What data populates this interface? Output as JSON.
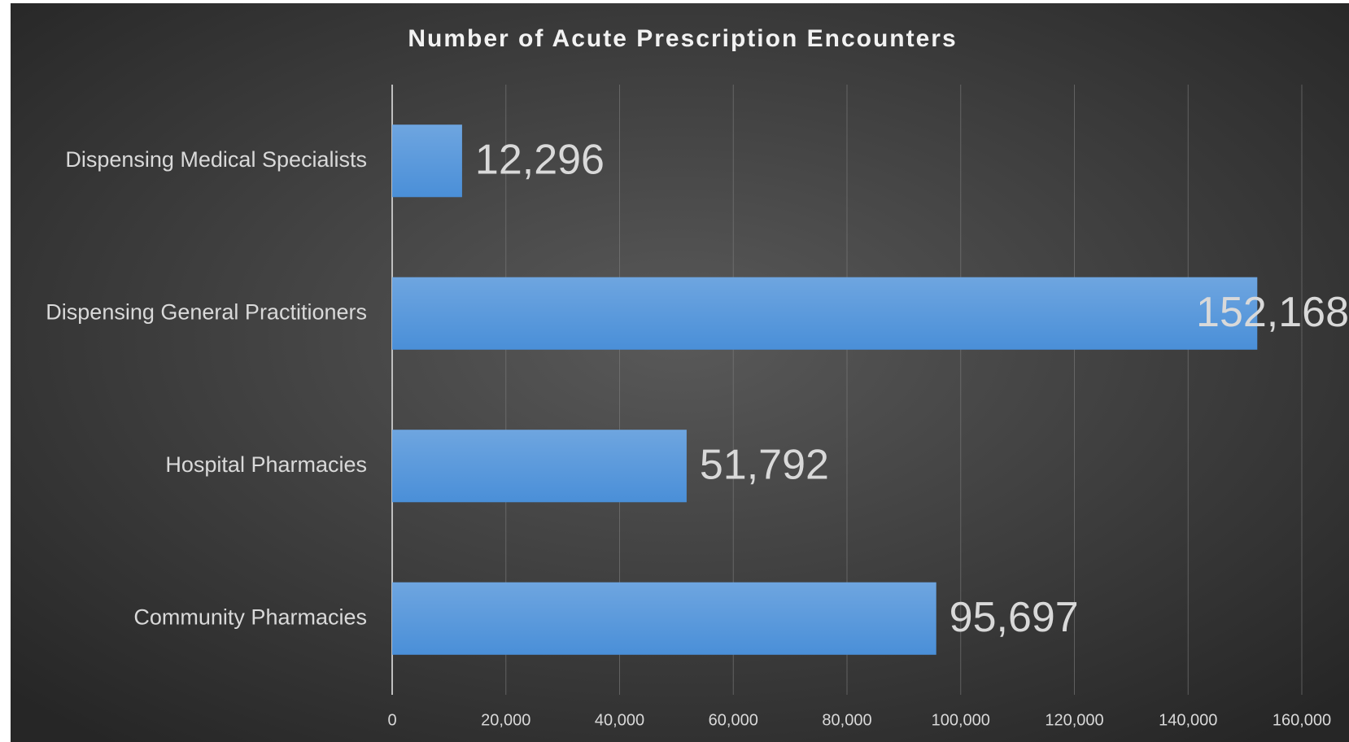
{
  "chart_data": {
    "type": "bar",
    "orientation": "horizontal",
    "title": "Number of Acute Prescription Encounters",
    "categories": [
      "Dispensing Medical Specialists",
      "Dispensing General Practitioners",
      "Hospital Pharmacies",
      "Community Pharmacies"
    ],
    "values": [
      12296,
      152168,
      51792,
      95697
    ],
    "value_labels": [
      "12,296",
      "152,168",
      "51,792",
      "95,697"
    ],
    "color": "#4a8fd8",
    "xlim": [
      0,
      160000
    ],
    "xticks": [
      0,
      {
        "value": 20000,
        "label": "20,000"
      },
      {
        "value": 40000,
        "label": "40,000"
      },
      {
        "value": 60000,
        "label": "60,000"
      },
      {
        "value": 80000,
        "label": "80,000"
      },
      {
        "value": 100000,
        "label": "100,000"
      },
      {
        "value": 120000,
        "label": "120,000"
      },
      {
        "value": 140000,
        "label": "140,000"
      },
      {
        "value": 160000,
        "label": "160,000"
      }
    ],
    "grid": true
  }
}
